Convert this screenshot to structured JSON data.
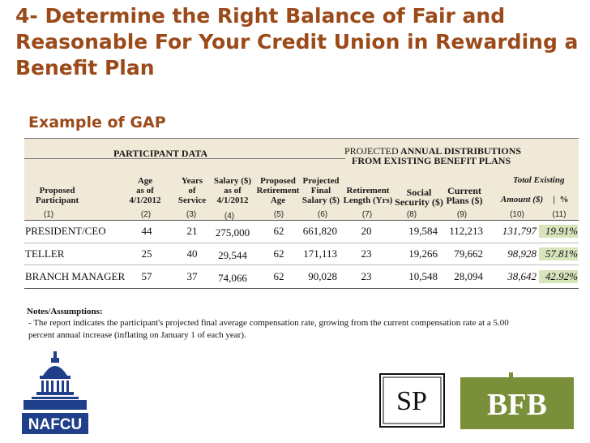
{
  "slide": {
    "title": "4- Determine the Right Balance of Fair and Reasonable For Your Credit Union in Rewarding a Benefit Plan",
    "subtitle": "Example of GAP"
  },
  "table": {
    "group_participant": "PARTICIPANT DATA",
    "group_projected_prefix": "PROJECTED",
    "group_projected_bold1": "ANNUAL DISTRIBUTIONS",
    "group_projected_bold2": "FROM EXISTING BENEFIT PLANS",
    "total_existing": "Total Existing",
    "columns": {
      "participant": [
        "Proposed",
        "Participant"
      ],
      "age": [
        "Age",
        "as of",
        "4/1/2012"
      ],
      "years": [
        "Years",
        "of",
        "Service"
      ],
      "salary": [
        "Salary ($)",
        "as of",
        "4/1/2012"
      ],
      "ret_age": [
        "Proposed",
        "Retirement",
        "Age"
      ],
      "final_salary": [
        "Projected",
        "Final",
        "Salary ($)"
      ],
      "ret_length": [
        "Retirement",
        "Length (Yrs)"
      ],
      "social": [
        "Social",
        "Security ($)"
      ],
      "current": [
        "Current",
        "Plans ($)"
      ],
      "amount": "Amount ($)",
      "pct": "%"
    },
    "col_numbers": [
      "(1)",
      "(2)",
      "(3)",
      "(4)",
      "(5)",
      "(6)",
      "(7)",
      "(8)",
      "(9)",
      "(10)",
      "(11)"
    ],
    "rows": [
      {
        "participant": "PRESIDENT/CEO",
        "age": "44",
        "years": "21",
        "salary": "275,000",
        "ret_age": "62",
        "final_salary": "661,820",
        "ret_length": "20",
        "social": "19,584",
        "current": "112,213",
        "amount": "131,797",
        "pct": "19.91%"
      },
      {
        "participant": "TELLER",
        "age": "25",
        "years": "40",
        "salary": "29,544",
        "ret_age": "62",
        "final_salary": "171,113",
        "ret_length": "23",
        "social": "19,266",
        "current": "79,662",
        "amount": "98,928",
        "pct": "57.81%"
      },
      {
        "participant": "BRANCH MANAGER",
        "age": "57",
        "years": "37",
        "salary": "74,066",
        "ret_age": "62",
        "final_salary": "90,028",
        "ret_length": "23",
        "social": "10,548",
        "current": "28,094",
        "amount": "38,642",
        "pct": "42.92%"
      }
    ]
  },
  "notes": {
    "title": "Notes/Assumptions:",
    "line1": "- The report indicates the participant's projected final average compensation rate, growing from the current compensation rate at a 5.00",
    "line2": "percent annual increase (inflating on January 1 of each year)."
  },
  "logos": {
    "nafcu": "NAFCU",
    "sp": "SP",
    "bfb": "BFB"
  },
  "colors": {
    "title": "#9b4a1a",
    "header_band": "#f1e9d7",
    "highlight": "#d8e4bc",
    "nafcu_blue": "#1f3f8a",
    "bfb_green": "#7a8f3a"
  }
}
